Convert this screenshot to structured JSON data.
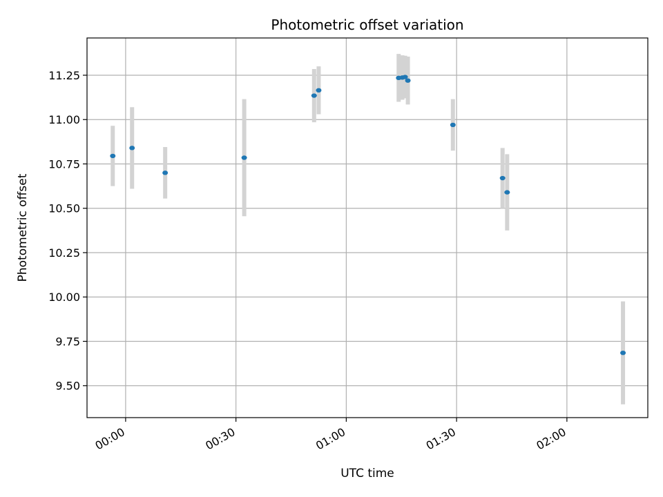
{
  "chart_data": {
    "type": "scatter",
    "title": "Photometric offset variation",
    "xlabel": "UTC time",
    "ylabel": "Photometric offset",
    "grid": true,
    "xlim": [
      "23:49:30",
      "02:22:00"
    ],
    "ylim": [
      9.32,
      11.46
    ],
    "x_ticks": [
      "00:00",
      "00:30",
      "01:00",
      "01:30",
      "02:00"
    ],
    "y_ticks": [
      "9.50",
      "9.75",
      "10.00",
      "10.25",
      "10.50",
      "10.75",
      "11.00",
      "11.25"
    ],
    "colors": {
      "point": "#1f77b4",
      "errorbar": "#d3d3d3",
      "grid": "#b0b0b0",
      "axes": "#000000"
    },
    "series": [
      {
        "x": [
          "23:56:30",
          "00:01:45",
          "00:10:45",
          "00:32:15",
          "00:51:15",
          "00:52:30",
          "01:14:15",
          "01:15:15",
          "01:16:00",
          "01:16:45",
          "01:29:00",
          "01:42:30",
          "01:43:45",
          "02:15:15"
        ],
        "y": [
          10.795,
          10.84,
          10.7,
          10.785,
          11.135,
          11.165,
          11.235,
          11.237,
          11.24,
          11.22,
          10.97,
          10.67,
          10.59,
          9.685
        ],
        "yerr": [
          0.17,
          0.23,
          0.145,
          0.33,
          0.15,
          0.135,
          0.135,
          0.125,
          0.12,
          0.135,
          0.145,
          0.17,
          0.215,
          0.29
        ]
      }
    ]
  }
}
